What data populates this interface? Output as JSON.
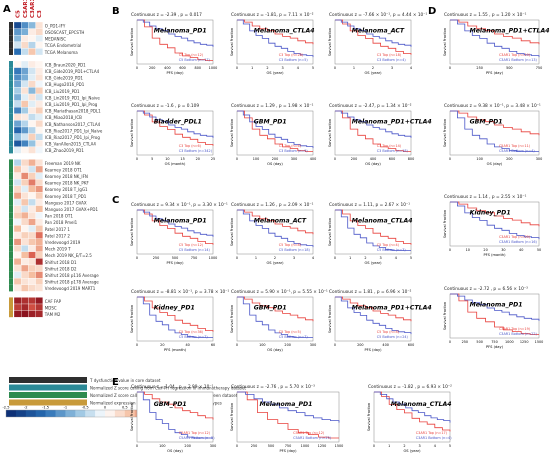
{
  "heatmap": {
    "col_labels": [
      "C5",
      "CSAR1",
      "C3AR1",
      "C3"
    ],
    "rows": [
      {
        "label": "O_PD1-IFY",
        "v": [
          -2.0,
          -1.2,
          -0.8,
          0.3
        ]
      },
      {
        "label": "OSOSCAST_EPCSTH",
        "v": [
          -1.1,
          -0.9,
          0.2,
          0.4
        ]
      },
      {
        "label": "MEDANISC",
        "v": [
          -0.8,
          0.2,
          0.1,
          -0.2
        ]
      },
      {
        "label": "TCGA Endometrial",
        "v": [
          -0.3,
          0.4,
          -0.5,
          0.1
        ]
      },
      {
        "label": "TCGA Melanoma",
        "v": [
          -1.5,
          -0.4,
          0.6,
          -0.3
        ]
      },
      {
        "label": "ICB_Braun2020_PD1",
        "v": [
          0.1,
          -0.2,
          0.2,
          0.1
        ]
      },
      {
        "label": "ICB_Gide2019_PD1+CTLA4",
        "v": [
          -1.4,
          -1.0,
          -0.3,
          0.2
        ]
      },
      {
        "label": "ICB_Gide2019_PD1",
        "v": [
          -1.2,
          -0.9,
          -0.2,
          0.3
        ]
      },
      {
        "label": "ICB_Hugo2016_PD1",
        "v": [
          -1.0,
          -0.3,
          0.4,
          -0.1
        ]
      },
      {
        "label": "ICB_Liu2019_PD1",
        "v": [
          -0.6,
          0.3,
          -0.8,
          0.5
        ]
      },
      {
        "label": "ICB_Lin2019_PD1_Ipi_Naive",
        "v": [
          -0.9,
          -0.2,
          0.3,
          -0.3
        ]
      },
      {
        "label": "ICB_Liu2019_PD1_Ipi_Prog",
        "v": [
          -0.4,
          0.6,
          -0.2,
          0.2
        ]
      },
      {
        "label": "ICB_Mariathasan2018_PDL1",
        "v": [
          -1.3,
          -0.6,
          0.2,
          0.5
        ]
      },
      {
        "label": "ICB_Miao2018_ICB",
        "v": [
          0.3,
          0.2,
          -0.4,
          -0.2
        ]
      },
      {
        "label": "ICB_Nathanson2017_CTLA4",
        "v": [
          -1.0,
          -0.5,
          0.1,
          0.4
        ]
      },
      {
        "label": "ICB_Riaz2017_PD1_Ipi_Naive",
        "v": [
          -1.6,
          -1.1,
          -0.5,
          0.1
        ]
      },
      {
        "label": "ICB_Riaz2017_PD1_Ipi_Prog",
        "v": [
          -0.7,
          -0.3,
          0.5,
          -0.4
        ]
      },
      {
        "label": "ICB_VanAllen2015_CTLA4",
        "v": [
          -1.8,
          -1.3,
          -0.7,
          0.2
        ]
      },
      {
        "label": "ICB_Zhao2019_PD1",
        "v": [
          -0.2,
          0.1,
          0.3,
          -0.1
        ]
      },
      {
        "label": "Freeman 2019 NK",
        "v": [
          -0.5,
          0.4,
          0.8,
          0.3
        ]
      },
      {
        "label": "Kearney 2018 OT1",
        "v": [
          0.6,
          0.2,
          -0.3,
          0.9
        ]
      },
      {
        "label": "Kearney 2018 NK_IFN",
        "v": [
          0.2,
          1.1,
          0.5,
          -0.2
        ]
      },
      {
        "label": "Kearney 2018 NK_PKF",
        "v": [
          -0.3,
          0.5,
          1.2,
          0.4
        ]
      },
      {
        "label": "Kearney 2018 T_IgG1",
        "v": [
          0.4,
          -0.2,
          0.7,
          1.0
        ]
      },
      {
        "label": "Kearney 2018 T_PD1",
        "v": [
          0.9,
          0.3,
          0.1,
          0.5
        ]
      },
      {
        "label": "Manguso 2017 GVAX",
        "v": [
          -0.2,
          0.6,
          -0.4,
          0.2
        ]
      },
      {
        "label": "Manguso 2017 GVAX+PD1",
        "v": [
          0.3,
          -0.3,
          0.2,
          0.7
        ]
      },
      {
        "label": "Pan 2018 OT1",
        "v": [
          0.5,
          0.8,
          0.3,
          -0.1
        ]
      },
      {
        "label": "Pan 2018 Pmel1",
        "v": [
          -0.1,
          0.4,
          0.9,
          0.2
        ]
      },
      {
        "label": "Patel 2017 1",
        "v": [
          0.7,
          0.1,
          -0.2,
          0.6
        ]
      },
      {
        "label": "Patel 2017 2",
        "v": [
          0.2,
          0.5,
          0.4,
          1.3
        ]
      },
      {
        "label": "Vredevoogd 2019",
        "v": [
          1.0,
          0.3,
          0.6,
          0.8
        ]
      },
      {
        "label": "Mech 2019 T",
        "v": [
          0.4,
          -0.4,
          0.2,
          0.9
        ]
      },
      {
        "label": "Mech 2019 NK_E/T=2.5",
        "v": [
          0.1,
          0.7,
          1.4,
          0.5
        ]
      },
      {
        "label": "Shifrut 2018 D1",
        "v": [
          0.8,
          0.2,
          0.3,
          2.0
        ]
      },
      {
        "label": "Shifrut 2018 D2",
        "v": [
          0.3,
          0.9,
          0.5,
          0.4
        ]
      },
      {
        "label": "Shifrut 2018 p116 Average",
        "v": [
          -0.2,
          0.4,
          0.7,
          1.1
        ]
      },
      {
        "label": "Shifrut 2018 p178 Average",
        "v": [
          0.6,
          0.3,
          0.2,
          0.5
        ]
      },
      {
        "label": "Vredevoogd 2019 MART1",
        "v": [
          0.2,
          0.6,
          0.4,
          0.3
        ]
      },
      {
        "label": "CAF FAP",
        "v": [
          2.2,
          2.0,
          1.9,
          2.3
        ]
      },
      {
        "label": "MDSC",
        "v": [
          1.8,
          2.1,
          1.6,
          1.9
        ]
      },
      {
        "label": "TAM M2",
        "v": [
          2.3,
          2.4,
          2.2,
          2.1
        ]
      }
    ],
    "scale_ticks": [
      "-2.5",
      "-2",
      "-1.5",
      "-1",
      "-0.5",
      "0",
      "0.5",
      "1",
      "1.5",
      "2",
      "2.5"
    ]
  },
  "legend": {
    "items": [
      {
        "color": "#2f2f2f",
        "text": "T dysfunction value in core dataset"
      },
      {
        "color": "#2c8a97",
        "text": "Normalized Z score calling from Cox-PH regression in Immunotherapy dataset"
      },
      {
        "color": "#2e8b4f",
        "text": "Normalized Z score calling from selective logFC in CRISPR Screen dataset"
      },
      {
        "color": "#c89a3a",
        "text": "Normalized expression value from immuno-suppressive cell types"
      }
    ]
  },
  "panel_letters": {
    "A": "A",
    "B": "B",
    "C": "C",
    "D": "D",
    "E": "E"
  },
  "colors": {
    "top": "#e8413c",
    "bottom": "#4a56c8"
  },
  "panels": [
    {
      "header": "Continuous z = -2.39 , p = 0.017",
      "title": "Melanoma_PD1",
      "leg_top": "C5 Top (n=12)",
      "leg_bottom": "C5 Bottom (n=17)",
      "xlabel": "PFS (day)",
      "ylabel": "Survival Fraction",
      "xticks": [
        "0",
        "200",
        "400",
        "600",
        "800",
        "1000"
      ]
    },
    {
      "header": "Continuous z = -1.81, p = 7.11 × 10⁻²",
      "title": "Melanoma_CTLA4",
      "leg_top": "C3 Top (n=28)",
      "leg_bottom": "C3 Bottom (n=5)",
      "xlabel": "OS (year)",
      "ylabel": "Survival Fraction",
      "xticks": [
        "0",
        "1",
        "2",
        "3",
        "4",
        "5"
      ]
    },
    {
      "header": "Continuous z = -7.66 × 10⁻¹, p = 4.44 × 10⁻¹",
      "title": "Melanoma_ACT",
      "leg_top": "C3 Top (n=18)",
      "leg_bottom": "C3 Bottom (n=4)",
      "xlabel": "OS (year)",
      "ylabel": "Survival Fraction",
      "xticks": [
        "0",
        "1",
        "2",
        "3",
        "4"
      ]
    },
    {
      "header": "Continuous z = -1.6 , p = 0.109",
      "title": "Bladder_PDL1",
      "leg_top": "C3 Top (n=6)",
      "leg_bottom": "C3 Bottom (n=342)",
      "xlabel": "OS (month)",
      "ylabel": "Survival Fraction",
      "xticks": [
        "0",
        "5",
        "10",
        "15",
        "20",
        "25"
      ]
    },
    {
      "header": "Continuous z = 1.29 , p = 1.98 × 10⁻¹",
      "title": "GBM_PD1",
      "leg_top": "C3 Top (n=6)",
      "leg_bottom": "C3 Bottom (n=9)",
      "xlabel": "OS (day)",
      "ylabel": "Survival Fraction",
      "xticks": [
        "0",
        "100",
        "200",
        "300",
        "400"
      ]
    },
    {
      "header": "Continuous z = -2.47, p = 1.34 × 10⁻²",
      "title": "Melanoma_PD1+CTLA4",
      "leg_top": "C3 Top (n=14)",
      "leg_bottom": "C3 Bottom (n=18)",
      "xlabel": "OS (day)",
      "ylabel": "Survival Fraction",
      "xticks": [
        "0",
        "200",
        "400",
        "600",
        "800"
      ]
    },
    {
      "header": "Continuous z = 9.34 × 10⁻¹, p = 3.30 × 10⁻¹",
      "title": "Melanoma_PD1",
      "leg_top": "C5 Top (n=12)",
      "leg_bottom": "C5 Bottom (n=14)",
      "xlabel": "PFS (day)",
      "ylabel": "Survival Fraction",
      "xticks": [
        "0",
        "250",
        "500",
        "750",
        "1000"
      ]
    },
    {
      "header": "Continuous z = 1.26 , p = 2.09 × 10⁻¹",
      "title": "Melanoma_ACT",
      "leg_top": "C5 Top (n=8)",
      "leg_bottom": "C5 Bottom (n=18)",
      "xlabel": "OS (year)",
      "ylabel": "Survival Fraction",
      "xticks": [
        "0",
        "1",
        "2",
        "3",
        "4"
      ]
    },
    {
      "header": "Continuous z = 1.11, p = 2.67 × 10⁻¹",
      "title": "Melanoma_CTLA4",
      "leg_top": "C5 Top (n=4)",
      "leg_bottom": "C5 Bottom (n=3)",
      "xlabel": "OS (year)",
      "ylabel": "Survival Fraction",
      "xticks": [
        "0",
        "1",
        "2",
        "3",
        "4",
        "5"
      ]
    },
    {
      "header": "Continuous z = -8.81 × 10⁻¹, p = 3.78 × 10⁻¹",
      "title": "Kidney_PD1",
      "leg_top": "C5 Top (n=36)",
      "leg_bottom": "C5 Bottom (n=7)",
      "xlabel": "PFS (month)",
      "ylabel": "Survival Fraction",
      "xticks": [
        "0",
        "20",
        "40",
        "60"
      ]
    },
    {
      "header": "Continuous z = 5.90 × 10⁻¹, p = 5.55 × 10⁻¹",
      "title": "GBM_PD1",
      "leg_top": "C5 Top (n=5)",
      "leg_bottom": "C5 Bottom (n=7)",
      "xlabel": "OS (day)",
      "ylabel": "Survival Fraction",
      "xticks": [
        "0",
        "100",
        "200",
        "300"
      ]
    },
    {
      "header": "Continuous z = 1.81 , p = 6.96 × 10⁻²",
      "title": "Melanoma_PD1+CTLA4",
      "leg_top": "C5 Top (n=8)",
      "leg_bottom": "C5 Bottom (n=24)",
      "xlabel": "PFS (day)",
      "ylabel": "Survival Fraction",
      "xticks": [
        "0",
        "200",
        "400",
        "600"
      ]
    },
    {
      "header": "Continuous z = 1.55 , p = 1.20 × 10⁻¹",
      "title": "Melanoma_PD1+CTLA4",
      "leg_top": "C3AR1 Top (n=19)",
      "leg_bottom": "C3AR1 Bottom (n=13)",
      "xlabel": "PFS (day)",
      "ylabel": "Survival Fraction",
      "xticks": [
        "0",
        "250",
        "500",
        "750"
      ]
    },
    {
      "header": "Continuous z = 9.38 × 10⁻¹, p = 3.48 × 10⁻¹",
      "title": "GBM_PD1",
      "leg_top": "C5AR1 Top (n=11)",
      "leg_bottom": "C5AR1 Bottom (n=4)",
      "xlabel": "OS (day)",
      "ylabel": "Survival Fraction",
      "xticks": [
        "0",
        "100",
        "200",
        "300"
      ]
    },
    {
      "header": "Continuous z = 1.14 , p = 2.55 × 10⁻¹",
      "title": "Kidney_PD1",
      "leg_top": "C3AR1 Top (n=29)",
      "leg_bottom": "C3AR1 Bottom (n=16)",
      "xlabel": "PFS (month)",
      "ylabel": "Survival Fraction",
      "xticks": [
        "0",
        "10",
        "20",
        "30",
        "40",
        "50"
      ]
    },
    {
      "header": "Continuous z = -2.72 , p = 6.56 × 10⁻³",
      "title": "Melanoma_PD1",
      "leg_top": "C3AR1 Top (n=19)",
      "leg_bottom": "C3AR1 Bottom (n=22)",
      "xlabel": "PFS (day)",
      "ylabel": "Survival Fraction",
      "xticks": [
        "0",
        "250",
        "500",
        "750",
        "1000",
        "1250",
        "1500"
      ]
    },
    {
      "header": "Continuous z = 1.04 , p = 2.99 × 10⁻¹",
      "title": "GBM_PD1",
      "leg_top": "C5AR1 Top (n=12)",
      "leg_bottom": "C5AR1 Bottom (n=5)",
      "xlabel": "OS (day)",
      "ylabel": "Survival Fraction",
      "xticks": [
        "0",
        "100",
        "200",
        "300"
      ]
    },
    {
      "header": "Continuous z = -2.76 , p = 5.70 × 10⁻³",
      "title": "Melanoma_PD1",
      "leg_top": "C5AR1 Top (n=12)",
      "leg_bottom": "C5AR1 Bottom (n=29)",
      "xlabel": "PFS (day)",
      "ylabel": "Survival Fraction",
      "xticks": [
        "0",
        "250",
        "500",
        "750",
        "1000",
        "1250",
        "1500"
      ]
    },
    {
      "header": "Continuous z = -1.82 , p = 6.93 × 10⁻²",
      "title": "Melanoma_CTLA4",
      "leg_top": "C3AR1 Top (n=17)",
      "leg_bottom": "C3AR1 Bottom (n=4)",
      "xlabel": "OS (year)",
      "ylabel": "Survival Fraction",
      "xticks": [
        "0",
        "1",
        "2",
        "3",
        "4",
        "5"
      ]
    }
  ]
}
